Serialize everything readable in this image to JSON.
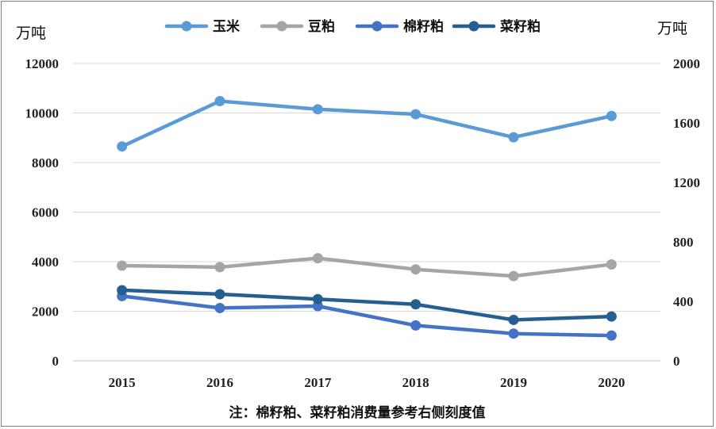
{
  "chart_data": {
    "type": "line",
    "x": [
      "2015",
      "2016",
      "2017",
      "2018",
      "2019",
      "2020"
    ],
    "left_axis": {
      "unit": "万吨",
      "ylim": [
        0,
        12000
      ],
      "ticks": [
        "0",
        "2000",
        "4000",
        "6000",
        "8000",
        "10000",
        "12000"
      ]
    },
    "right_axis": {
      "unit": "万吨",
      "ylim": [
        0,
        2000
      ],
      "ticks": [
        "0",
        "400",
        "800",
        "1200",
        "1600",
        "2000"
      ]
    },
    "series": [
      {
        "name": "玉米",
        "axis": "left",
        "color": "#5b9bd5",
        "values": [
          8650,
          10480,
          10150,
          9950,
          9020,
          9880
        ]
      },
      {
        "name": "豆粕",
        "axis": "right",
        "color": "#a5a5a5",
        "values": [
          640,
          630,
          690,
          615,
          570,
          648
        ]
      },
      {
        "name": "棉籽粕",
        "axis": "right",
        "color": "#4472c4",
        "values": [
          435,
          355,
          368,
          238,
          183,
          170
        ]
      },
      {
        "name": "菜籽粕",
        "axis": "right",
        "color": "#255e91",
        "values": [
          475,
          448,
          415,
          380,
          275,
          298
        ]
      }
    ],
    "grid": true,
    "legend": "top",
    "note": "注：棉籽粕、菜籽粕消费量参考右侧刻度值"
  }
}
